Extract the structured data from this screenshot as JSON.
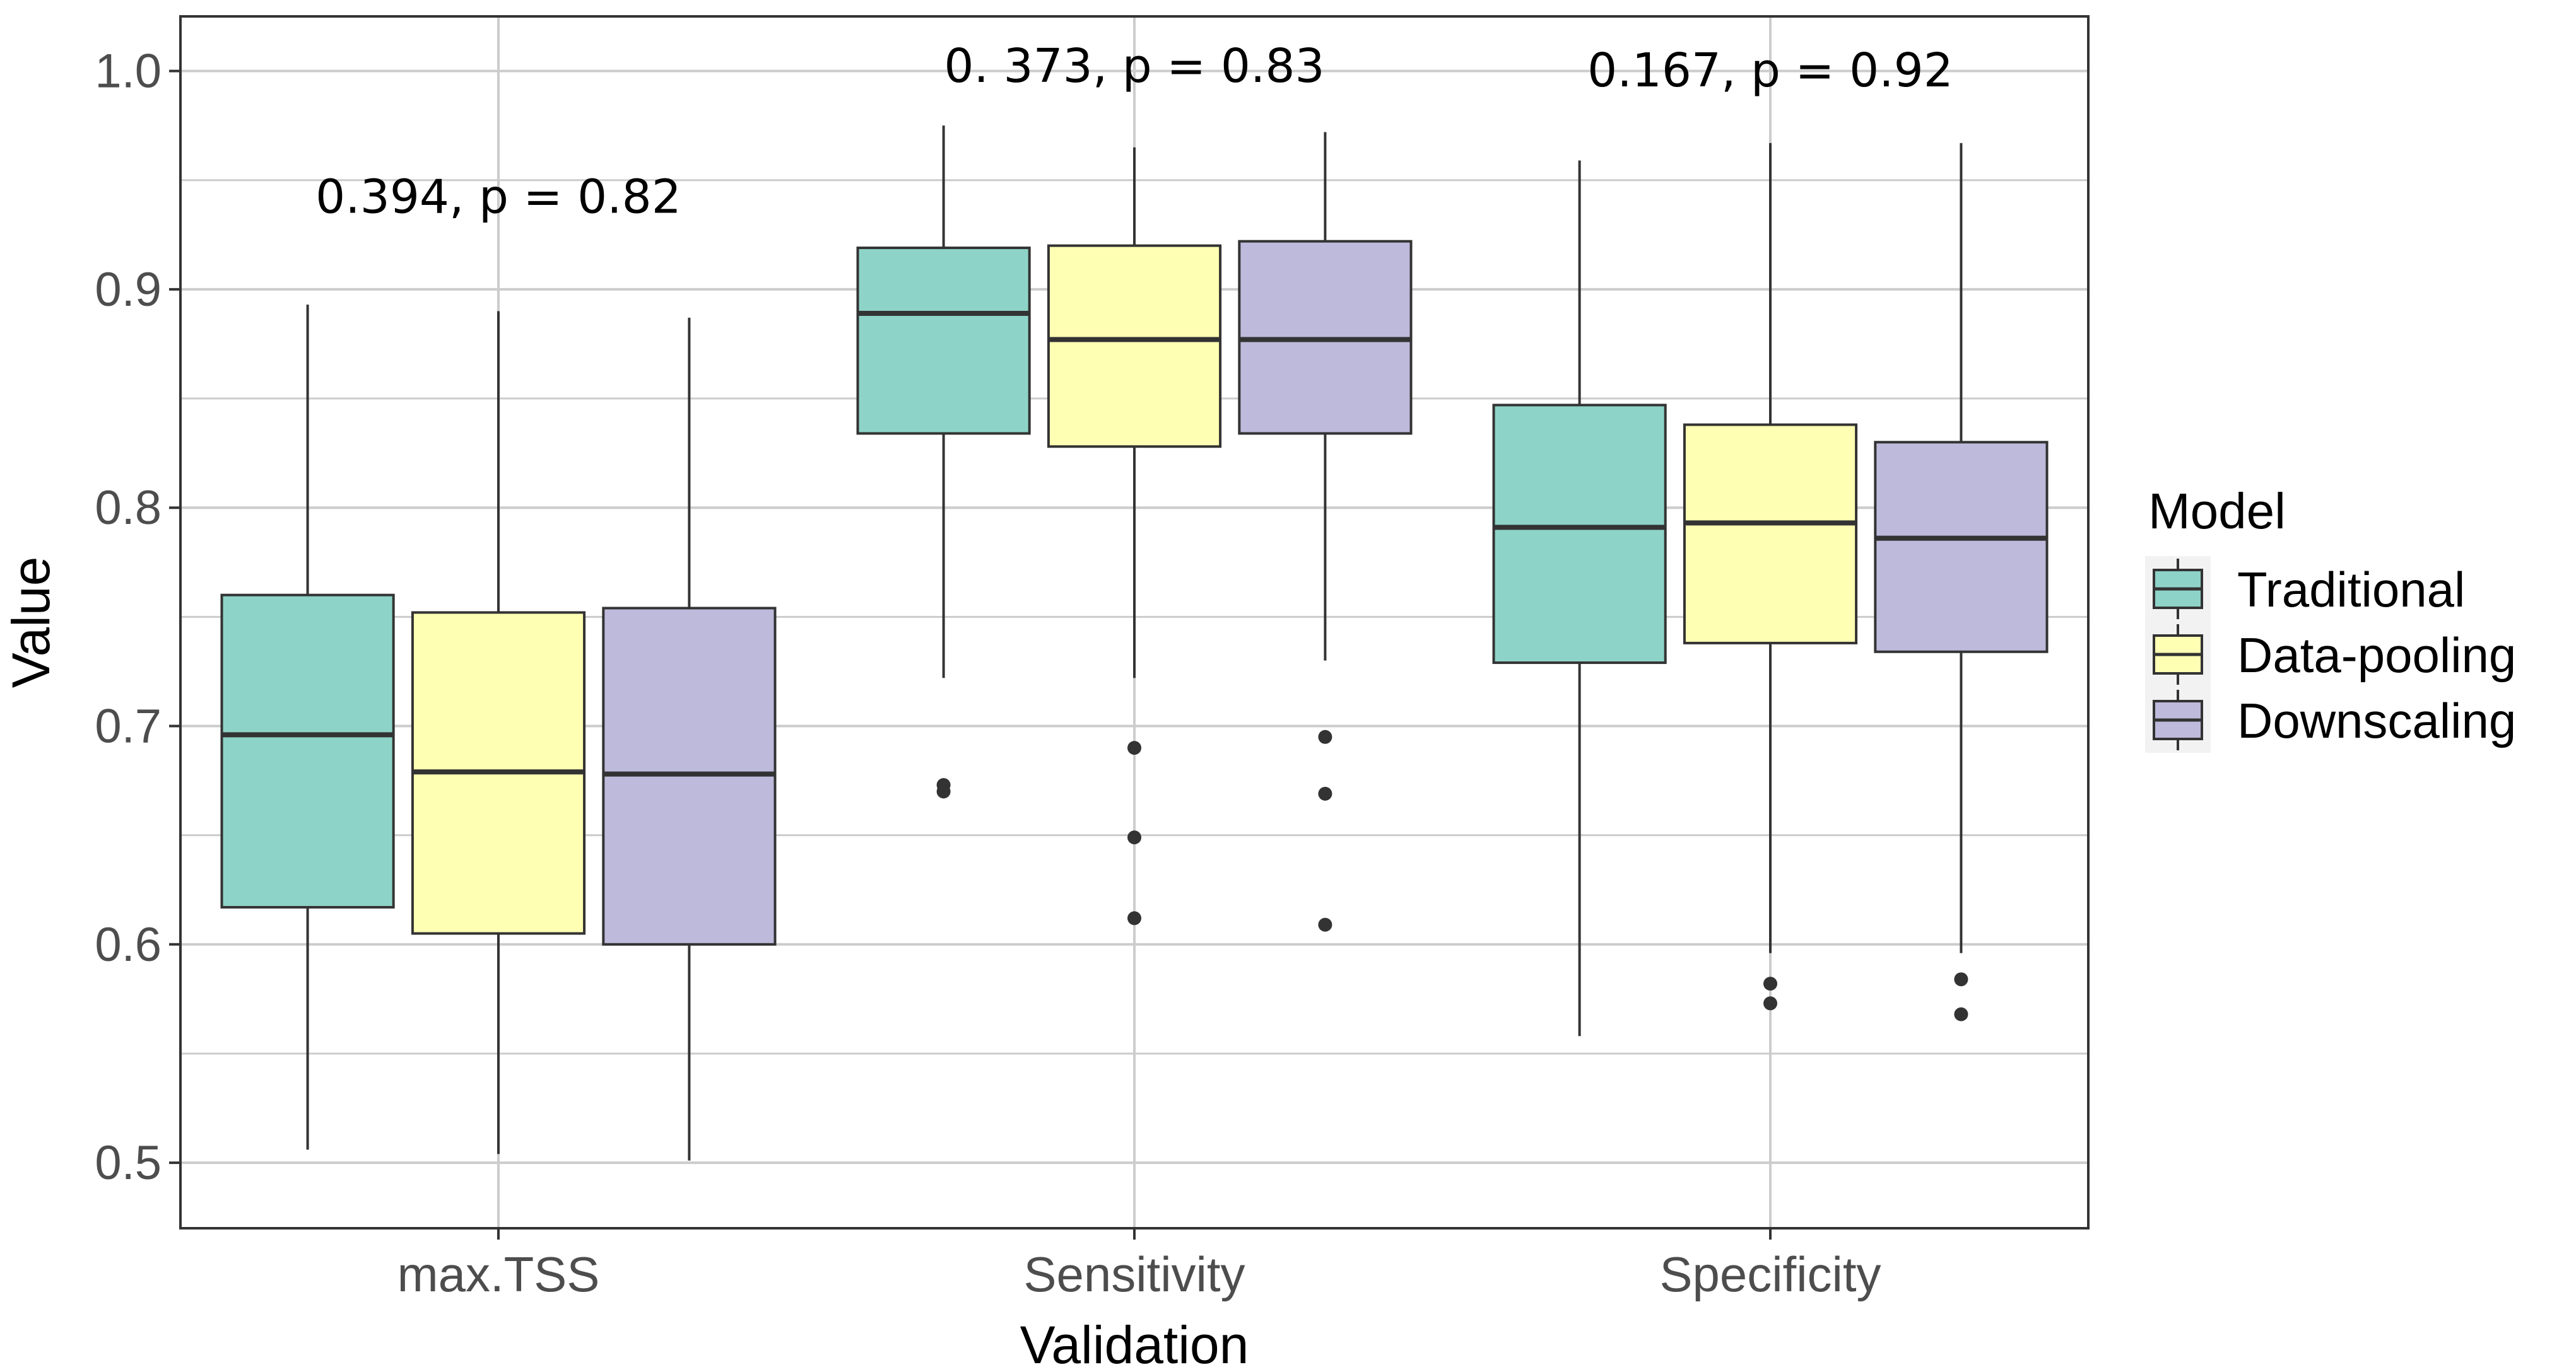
{
  "chart_data": {
    "type": "boxplot",
    "title": "",
    "xlabel": "Validation",
    "ylabel": "Value",
    "ylim": [
      0.47,
      1.025
    ],
    "yticks": [
      "0.5",
      "0.6",
      "0.7",
      "0.8",
      "0.9",
      "1.0"
    ],
    "categories": [
      "max.TSS",
      "Sensitivity",
      "Specificity"
    ],
    "grid": true,
    "legend": {
      "title": "Model",
      "position": "right",
      "entries": [
        "Traditional",
        "Data-pooling",
        "Downscaling"
      ]
    },
    "colors": {
      "Traditional": "#8ed3c7",
      "Data-pooling": "#ffffb3",
      "Downscaling": "#bdbadb",
      "outline": "#333333",
      "grid": "#cccccc"
    },
    "annotations": [
      {
        "category": "max.TSS",
        "text": "0.394, p = 0.82",
        "y": 0.935
      },
      {
        "category": "Sensitivity",
        "text": "0. 373, p = 0.83",
        "y": 0.995
      },
      {
        "category": "Specificity",
        "text": "0.167, p = 0.92",
        "y": 0.993
      }
    ],
    "series": [
      {
        "name": "Traditional",
        "boxes": [
          {
            "whisker_low": 0.506,
            "q1": 0.617,
            "median": 0.696,
            "q3": 0.76,
            "whisker_high": 0.893,
            "outliers": []
          },
          {
            "whisker_low": 0.722,
            "q1": 0.834,
            "median": 0.889,
            "q3": 0.919,
            "whisker_high": 0.975,
            "outliers": [
              0.67,
              0.673
            ]
          },
          {
            "whisker_low": 0.558,
            "q1": 0.729,
            "median": 0.791,
            "q3": 0.847,
            "whisker_high": 0.959,
            "outliers": []
          }
        ]
      },
      {
        "name": "Data-pooling",
        "boxes": [
          {
            "whisker_low": 0.504,
            "q1": 0.605,
            "median": 0.679,
            "q3": 0.752,
            "whisker_high": 0.89,
            "outliers": []
          },
          {
            "whisker_low": 0.722,
            "q1": 0.828,
            "median": 0.877,
            "q3": 0.92,
            "whisker_high": 0.965,
            "outliers": [
              0.69,
              0.649,
              0.612
            ]
          },
          {
            "whisker_low": 0.596,
            "q1": 0.738,
            "median": 0.793,
            "q3": 0.838,
            "whisker_high": 0.967,
            "outliers": [
              0.582,
              0.573
            ]
          }
        ]
      },
      {
        "name": "Downscaling",
        "boxes": [
          {
            "whisker_low": 0.501,
            "q1": 0.6,
            "median": 0.678,
            "q3": 0.754,
            "whisker_high": 0.887,
            "outliers": []
          },
          {
            "whisker_low": 0.73,
            "q1": 0.834,
            "median": 0.877,
            "q3": 0.922,
            "whisker_high": 0.972,
            "outliers": [
              0.695,
              0.669,
              0.609
            ]
          },
          {
            "whisker_low": 0.596,
            "q1": 0.734,
            "median": 0.786,
            "q3": 0.83,
            "whisker_high": 0.967,
            "outliers": [
              0.584,
              0.568
            ]
          }
        ]
      }
    ]
  }
}
